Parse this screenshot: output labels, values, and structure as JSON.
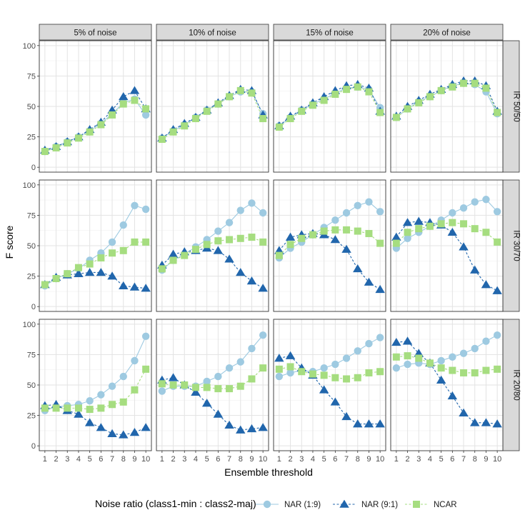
{
  "chart_data": {
    "type": "line",
    "facet_columns": [
      "5% of noise",
      "10% of noise",
      "15% of noise",
      "20% of noise"
    ],
    "facet_rows": [
      "IR 50/50",
      "IR 30/70",
      "IR 20/80"
    ],
    "x": [
      1,
      2,
      3,
      4,
      5,
      6,
      7,
      8,
      9,
      10
    ],
    "x_ticks": [
      "1",
      "2",
      "3",
      "4",
      "5",
      "6",
      "7",
      "8",
      "9",
      "10"
    ],
    "y_ticks": [
      "0",
      "25",
      "50",
      "75",
      "100"
    ],
    "ylim": [
      0,
      100
    ],
    "xlabel": "Ensemble threshold",
    "ylabel": "F score",
    "legend_title": "Noise ratio (class1-min : class2-maj)",
    "legend_position": "bottom",
    "grid": true,
    "series": [
      {
        "name": "NAR (1:9)",
        "color": "#9ecae1",
        "marker": "circle",
        "line": "solid"
      },
      {
        "name": "NAR (9:1)",
        "color": "#2166ac",
        "marker": "triangle",
        "line": "dashed"
      },
      {
        "name": "NCAR",
        "color": "#a6dd80",
        "marker": "square",
        "line": "dashed"
      }
    ],
    "panels": [
      [
        {
          "values": [
            [
              13,
              17,
              21,
              25,
              30,
              36,
              44,
              53,
              56,
              43
            ],
            [
              14,
              17,
              21,
              25,
              31,
              37,
              47,
              58,
              63,
              48
            ],
            [
              13,
              16,
              20,
              24,
              29,
              35,
              43,
              52,
              55,
              48
            ]
          ]
        },
        {
          "values": [
            [
              24,
              30,
              35,
              41,
              47,
              52,
              58,
              62,
              62,
              44
            ],
            [
              24,
              31,
              36,
              41,
              47,
              53,
              59,
              64,
              63,
              43
            ],
            [
              23,
              29,
              34,
              40,
              46,
              52,
              58,
              63,
              61,
              40
            ]
          ]
        },
        {
          "values": [
            [
              34,
              41,
              47,
              52,
              56,
              61,
              65,
              66,
              64,
              49
            ],
            [
              34,
              42,
              47,
              53,
              58,
              63,
              67,
              68,
              65,
              46
            ],
            [
              33,
              40,
              46,
              51,
              55,
              60,
              64,
              66,
              62,
              45
            ]
          ]
        },
        {
          "values": [
            [
              41,
              48,
              54,
              58,
              63,
              67,
              69,
              68,
              62,
              44
            ],
            [
              42,
              50,
              55,
              60,
              64,
              68,
              71,
              71,
              67,
              46
            ],
            [
              41,
              48,
              53,
              58,
              63,
              66,
              69,
              69,
              65,
              45
            ]
          ]
        }
      ],
      [
        {
          "values": [
            [
              17,
              23,
              27,
              31,
              38,
              44,
              53,
              67,
              83,
              80
            ],
            [
              18,
              24,
              26,
              27,
              28,
              28,
              25,
              17,
              16,
              15
            ],
            [
              18,
              23,
              27,
              32,
              35,
              40,
              44,
              46,
              53,
              53
            ]
          ]
        },
        {
          "values": [
            [
              30,
              38,
              43,
              49,
              55,
              62,
              69,
              79,
              85,
              77
            ],
            [
              34,
              43,
              45,
              46,
              48,
              46,
              39,
              28,
              21,
              15
            ],
            [
              31,
              38,
              42,
              47,
              51,
              54,
              55,
              56,
              57,
              53
            ]
          ]
        },
        {
          "values": [
            [
              40,
              48,
              53,
              59,
              65,
              71,
              77,
              83,
              86,
              78
            ],
            [
              46,
              57,
              59,
              60,
              59,
              55,
              47,
              31,
              20,
              14
            ],
            [
              42,
              51,
              56,
              59,
              62,
              63,
              63,
              62,
              60,
              52
            ]
          ]
        },
        {
          "values": [
            [
              48,
              56,
              61,
              66,
              71,
              77,
              81,
              86,
              88,
              78
            ],
            [
              57,
              69,
              70,
              69,
              67,
              61,
              49,
              30,
              18,
              13
            ],
            [
              52,
              61,
              64,
              66,
              68,
              69,
              68,
              64,
              61,
              53
            ]
          ]
        }
      ],
      [
        {
          "values": [
            [
              29,
              32,
              33,
              34,
              37,
              42,
              49,
              57,
              70,
              90
            ],
            [
              33,
              34,
              29,
              26,
              19,
              15,
              10,
              9,
              11,
              15
            ],
            [
              31,
              31,
              31,
              31,
              30,
              31,
              34,
              36,
              46,
              63
            ]
          ]
        },
        {
          "values": [
            [
              45,
              49,
              49,
              49,
              53,
              57,
              64,
              69,
              80,
              91
            ],
            [
              54,
              56,
              50,
              44,
              35,
              26,
              17,
              13,
              14,
              15
            ],
            [
              51,
              50,
              50,
              48,
              48,
              47,
              47,
              49,
              55,
              64
            ]
          ]
        },
        {
          "values": [
            [
              57,
              60,
              62,
              61,
              64,
              67,
              72,
              78,
              84,
              89
            ],
            [
              72,
              74,
              64,
              58,
              46,
              36,
              24,
              18,
              18,
              18
            ],
            [
              63,
              65,
              61,
              59,
              58,
              56,
              55,
              56,
              60,
              61
            ]
          ]
        },
        {
          "values": [
            [
              64,
              67,
              68,
              67,
              70,
              73,
              76,
              80,
              86,
              91
            ],
            [
              85,
              86,
              76,
              68,
              54,
              41,
              27,
              19,
              19,
              18
            ],
            [
              73,
              74,
              72,
              68,
              64,
              62,
              60,
              60,
              62,
              63
            ]
          ]
        }
      ]
    ]
  }
}
